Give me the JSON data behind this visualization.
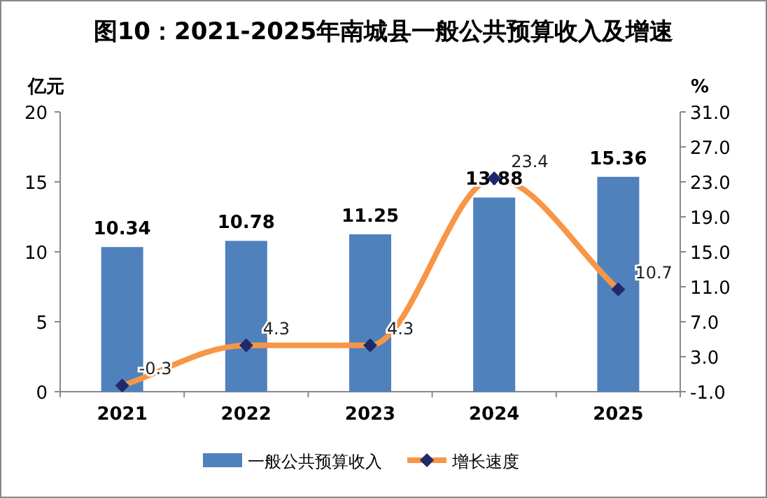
{
  "chart_data": {
    "type": "bar",
    "title": "图10：2021-2025年南城县一般公共预算收入及增速",
    "ylabel": "亿元",
    "y2label": "%",
    "categories": [
      "2021",
      "2022",
      "2023",
      "2024",
      "2025"
    ],
    "series": [
      {
        "name": "一般公共预算收入",
        "color": "#4f81bd",
        "values": [
          10.34,
          10.78,
          11.25,
          13.88,
          15.36
        ]
      },
      {
        "name": "增长速度",
        "type": "line",
        "axis": "y2",
        "color": "#f79646",
        "values": [
          -0.3,
          4.3,
          4.3,
          23.4,
          10.7
        ]
      }
    ],
    "ylim": [
      0,
      20
    ],
    "yticks": [
      0,
      5,
      10,
      15,
      20
    ],
    "y2lim": [
      -1,
      31
    ],
    "y2ticks": [
      {
        "value": -1,
        "label": "-1.0"
      },
      {
        "value": 3,
        "label": "3.0"
      },
      {
        "value": 7,
        "label": "7.0"
      },
      {
        "value": 11,
        "label": "11.0"
      },
      {
        "value": 15,
        "label": "15.0"
      },
      {
        "value": 19,
        "label": "19.0"
      },
      {
        "value": 23,
        "label": "23.0"
      },
      {
        "value": 27,
        "label": "27.0"
      },
      {
        "value": 31,
        "label": "31.0"
      }
    ],
    "data_labels": true,
    "marker": "diamond",
    "grid": false,
    "legend": "bottom"
  }
}
